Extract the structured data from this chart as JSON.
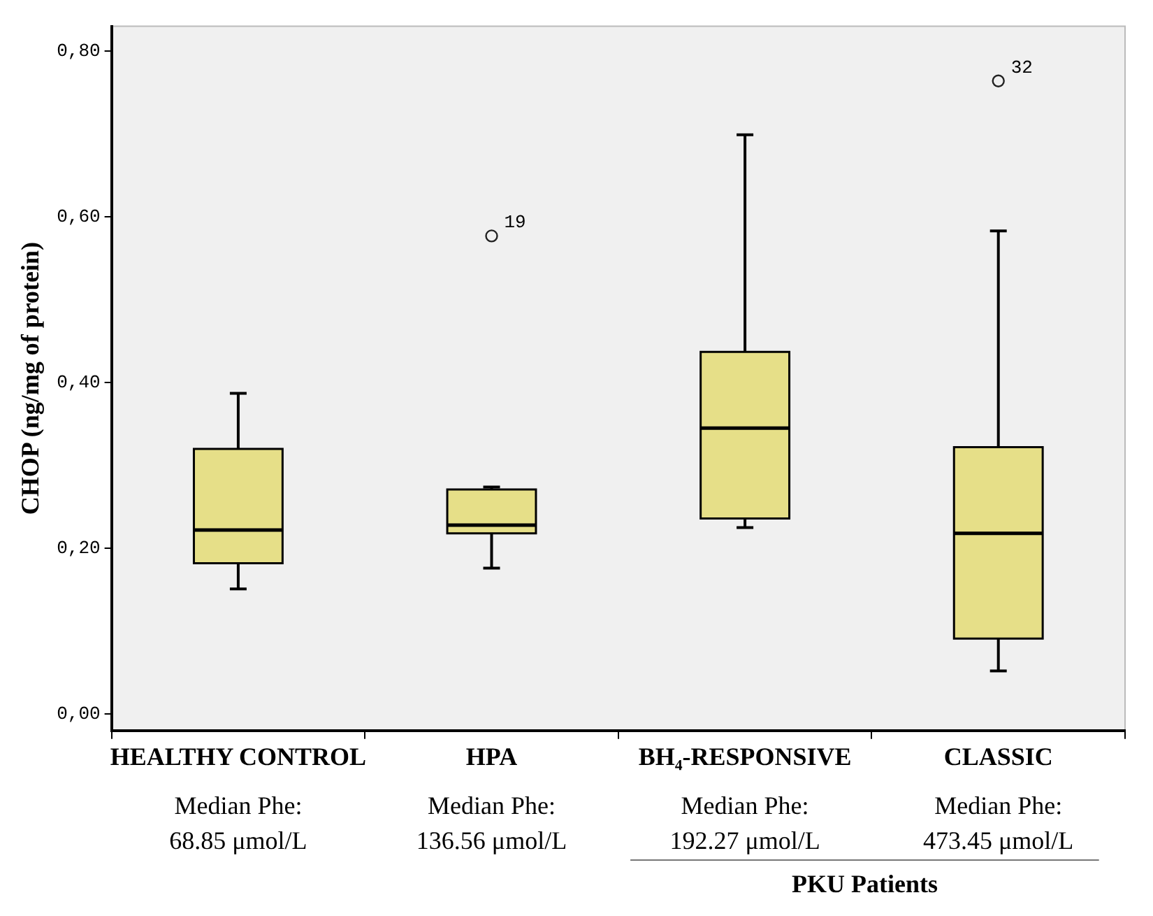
{
  "chart_data": {
    "type": "box",
    "ylabel": "CHOP (ng/mg of protein)",
    "categories": [
      "HEALTHY CONTROL",
      "HPA",
      "BH₄-RESPONSIVE",
      "CLASSIC"
    ],
    "series": [
      {
        "color": "#e6df88",
        "boxes": [
          {
            "low": 0.151,
            "q1": 0.182,
            "median": 0.222,
            "q3": 0.32,
            "high": 0.387
          },
          {
            "low": 0.176,
            "q1": 0.218,
            "median": 0.228,
            "q3": 0.271,
            "high": 0.274,
            "outliers": [
              0.577
            ]
          },
          {
            "low": 0.225,
            "q1": 0.236,
            "median": 0.345,
            "q3": 0.437,
            "high": 0.699
          },
          {
            "low": 0.052,
            "q1": 0.091,
            "median": 0.218,
            "q3": 0.322,
            "high": 0.583,
            "outliers": [
              0.764
            ]
          }
        ]
      }
    ],
    "ylim": [
      -0.02,
      0.83
    ],
    "yticks": [
      {
        "value": 0,
        "label": "0,00"
      },
      {
        "value": 0.2,
        "label": "0,20"
      },
      {
        "value": 0.4,
        "label": "0,40"
      },
      {
        "value": 0.6,
        "label": "0,60"
      },
      {
        "value": 0.8,
        "label": "0,80"
      }
    ],
    "annotations": [
      "Median Phe:\n68.85 μmol/L",
      "Median Phe:\n136.56 μmol/L",
      "Median Phe:\n192.27 μmol/L",
      "Median Phe:\n473.45 μmol/L",
      "PKU Patients",
      "19",
      "32"
    ],
    "legend": false
  }
}
